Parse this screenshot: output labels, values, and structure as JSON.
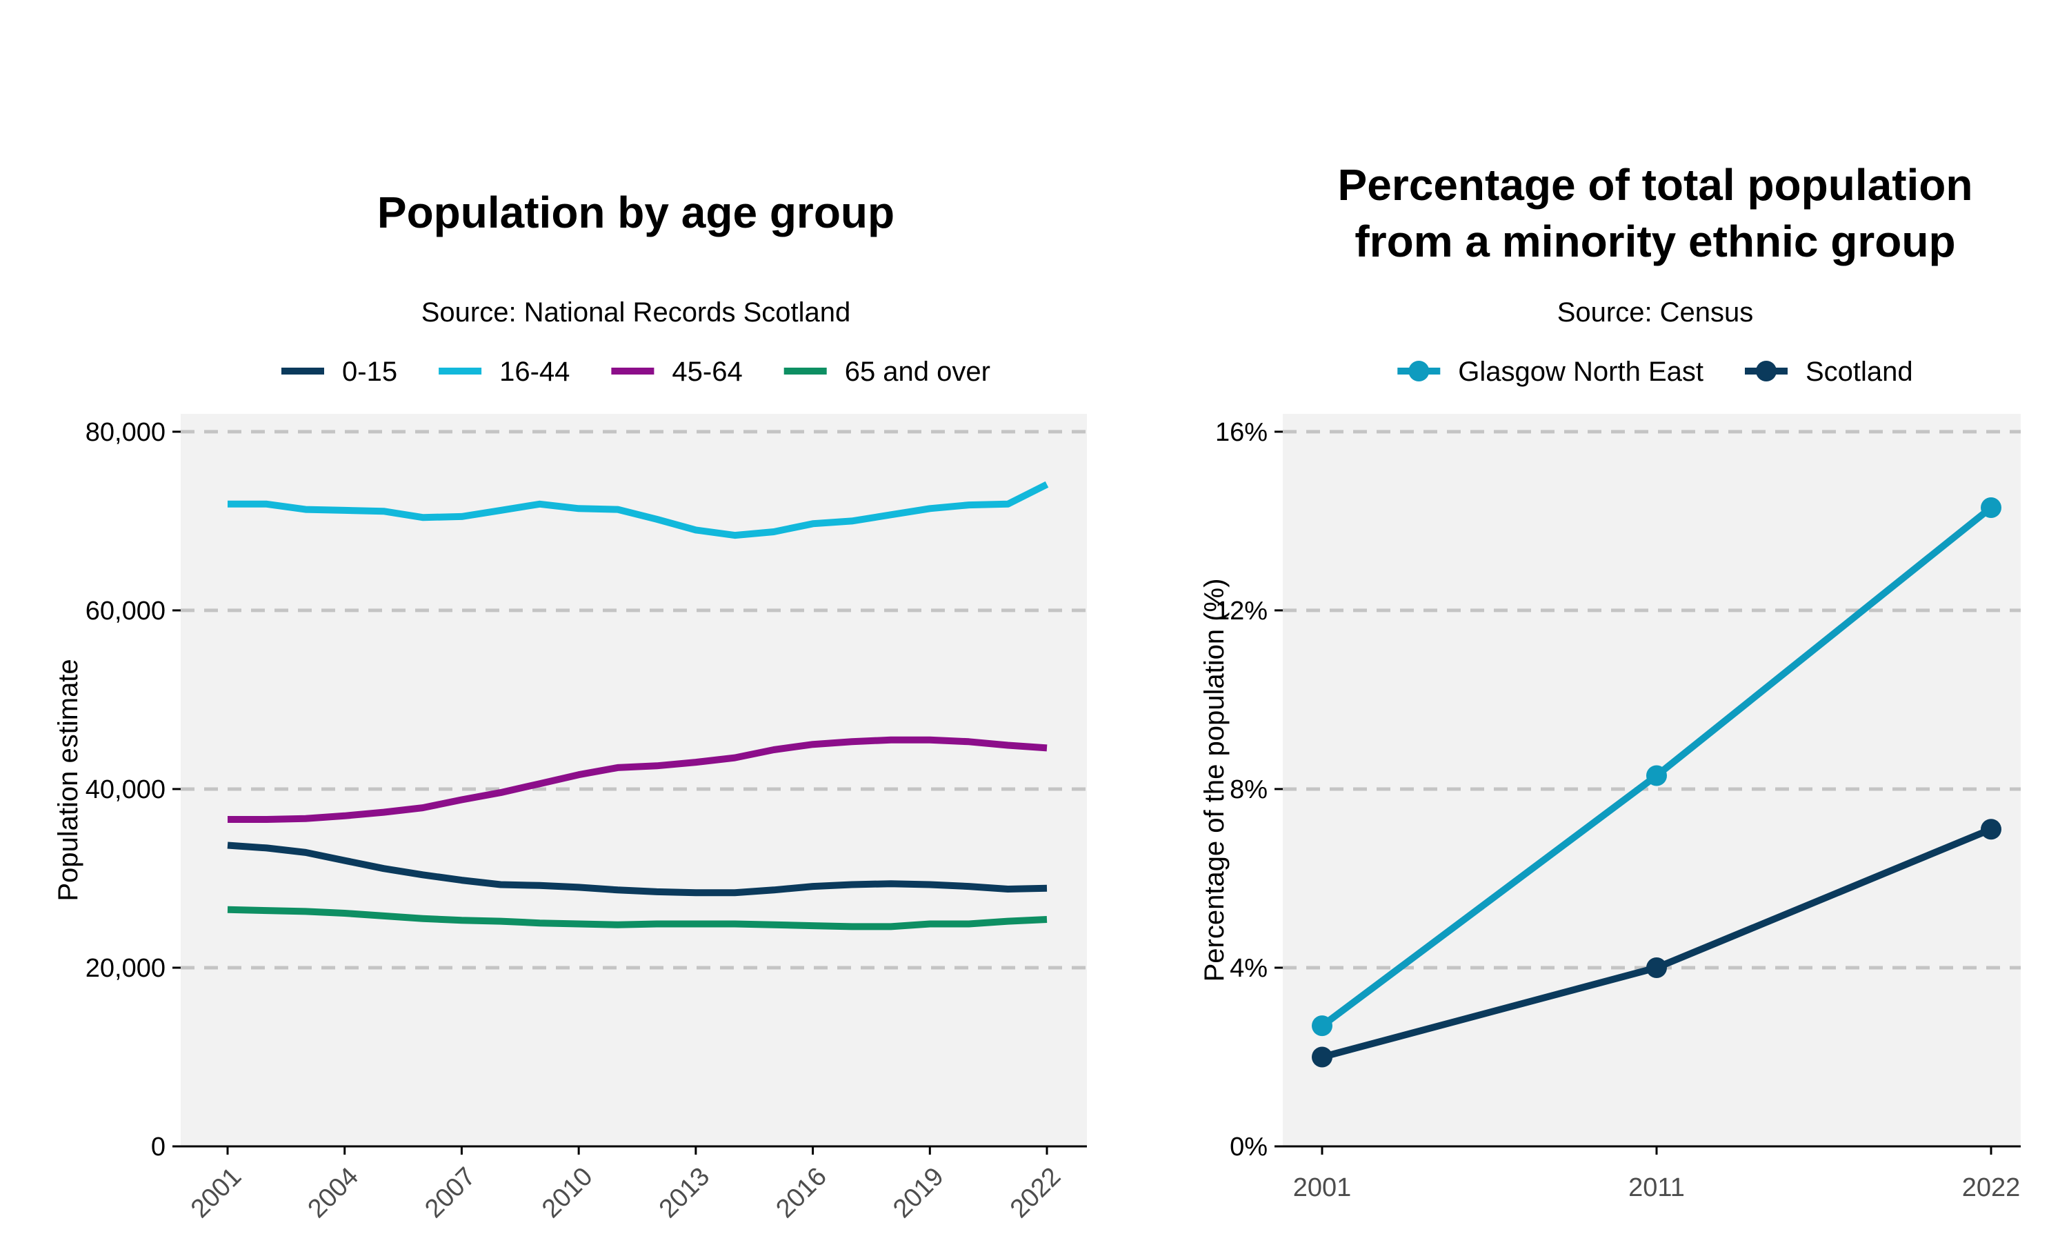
{
  "chart_data": [
    {
      "type": "line",
      "title": "Population by age group",
      "subtitle": "Source: National Records Scotland",
      "xlabel": "",
      "ylabel": "Population estimate",
      "x": [
        2001,
        2002,
        2003,
        2004,
        2005,
        2006,
        2007,
        2008,
        2009,
        2010,
        2011,
        2012,
        2013,
        2014,
        2015,
        2016,
        2017,
        2018,
        2019,
        2020,
        2021,
        2022
      ],
      "x_ticks": [
        "2001",
        "2004",
        "2007",
        "2010",
        "2013",
        "2016",
        "2019",
        "2022"
      ],
      "y_ticks": [
        "0",
        "20,000",
        "40,000",
        "60,000",
        "80,000"
      ],
      "ylim": [
        0,
        82000
      ],
      "grid": "horizontal dashed",
      "legend_position": "top",
      "series": [
        {
          "name": "0-15",
          "color": "#0b3a5c",
          "values": [
            33700,
            33400,
            32900,
            32000,
            31100,
            30400,
            29800,
            29300,
            29200,
            29000,
            28700,
            28500,
            28400,
            28400,
            28700,
            29100,
            29300,
            29400,
            29300,
            29100,
            28800,
            28900
          ]
        },
        {
          "name": "16-44",
          "color": "#12b8db",
          "values": [
            71900,
            71900,
            71300,
            71200,
            71100,
            70400,
            70500,
            71200,
            71900,
            71400,
            71300,
            70200,
            69000,
            68400,
            68800,
            69700,
            70000,
            70700,
            71400,
            71800,
            71900,
            74100
          ]
        },
        {
          "name": "45-64",
          "color": "#8c0e8a",
          "values": [
            36600,
            36600,
            36700,
            37000,
            37400,
            37900,
            38800,
            39600,
            40600,
            41600,
            42400,
            42600,
            43000,
            43500,
            44400,
            45000,
            45300,
            45500,
            45500,
            45300,
            44900,
            44600
          ]
        },
        {
          "name": "65 and over",
          "color": "#0e8f63",
          "values": [
            26500,
            26400,
            26300,
            26100,
            25800,
            25500,
            25300,
            25200,
            25000,
            24900,
            24800,
            24900,
            24900,
            24900,
            24800,
            24700,
            24600,
            24600,
            24900,
            24900,
            25200,
            25400
          ]
        }
      ]
    },
    {
      "type": "line",
      "title": [
        "Percentage of total population",
        "from a minority ethnic group"
      ],
      "subtitle": "Source: Census",
      "xlabel": "",
      "ylabel": "Percentage of the population (%)",
      "categories": [
        "2001",
        "2011",
        "2022"
      ],
      "y_ticks": [
        "0%",
        "4%",
        "8%",
        "12%",
        "16%"
      ],
      "ylim": [
        0,
        16.4
      ],
      "grid": "horizontal dashed",
      "legend_position": "top",
      "markers": true,
      "series": [
        {
          "name": "Glasgow North East",
          "color": "#0e9bbf",
          "values": [
            2.7,
            8.3,
            14.3
          ]
        },
        {
          "name": "Scotland",
          "color": "#0b3a5c",
          "values": [
            2.0,
            4.0,
            7.1
          ]
        }
      ]
    }
  ]
}
